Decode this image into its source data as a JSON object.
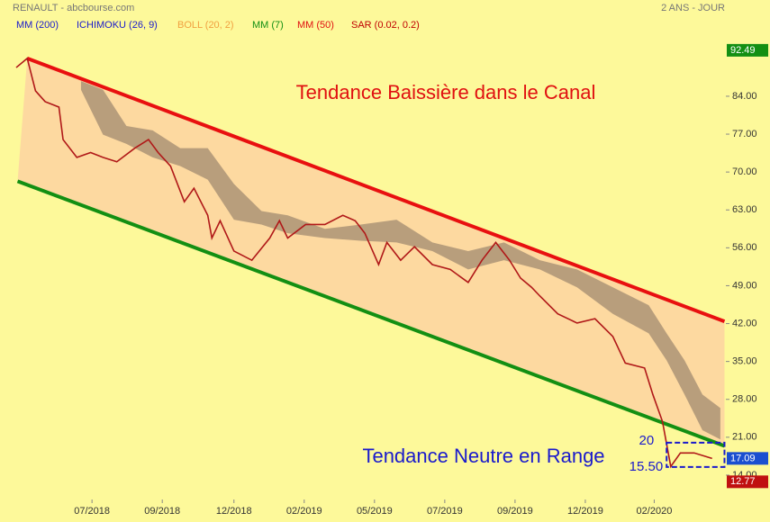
{
  "chart_data": {
    "type": "line",
    "title": "RENAULT - abcbourse.com",
    "period": "2 ANS - JOUR",
    "indicators": [
      {
        "label": "MM (200)",
        "color": "#1a1acc"
      },
      {
        "label": "ICHIMOKU (26, 9)",
        "color": "#1a1acc"
      },
      {
        "label": "BOLL (20, 2)",
        "color": "#f0a040"
      },
      {
        "label": "MM (7)",
        "color": "#138f13"
      },
      {
        "label": "MM (50)",
        "color": "#e01010"
      },
      {
        "label": "SAR (0.02, 0.2)",
        "color": "#c00000"
      }
    ],
    "x": [
      0,
      8,
      14,
      21,
      31,
      34,
      44,
      54,
      63,
      73,
      86,
      96,
      103,
      112,
      122,
      129,
      139,
      142,
      148,
      158,
      171,
      184,
      191,
      197,
      210,
      224,
      237,
      246,
      253,
      263,
      269,
      279,
      289,
      302,
      315,
      328,
      338,
      348,
      358,
      366,
      374,
      380,
      393,
      407,
      420,
      433,
      442,
      456,
      462,
      469,
      475,
      482,
      492,
      505
    ],
    "series": [
      {
        "color": "#b01818",
        "values": [
          89.3,
          91,
          85,
          83,
          82,
          76,
          72.7,
          73.6,
          72.7,
          71.9,
          74.4,
          76,
          73.6,
          71.1,
          64.5,
          67,
          62,
          57.8,
          61,
          55.4,
          53.7,
          57.8,
          61,
          57.8,
          60.3,
          60.3,
          62,
          61,
          58.7,
          52.9,
          57,
          53.7,
          56.2,
          52.9,
          52,
          49.6,
          53.7,
          57,
          53.7,
          50.4,
          48.7,
          47.1,
          43.8,
          42.1,
          42.9,
          39.6,
          34.7,
          33.8,
          28.9,
          23.9,
          15.6,
          18.1,
          18.1,
          17.09
        ]
      }
    ],
    "cloud": {
      "color": "#a08a70",
      "x": [
        47,
        63,
        80,
        99,
        119,
        139,
        158,
        178,
        197,
        224,
        250,
        276,
        302,
        328,
        354,
        380,
        407,
        433,
        459,
        472,
        485,
        498,
        511
      ],
      "upper": [
        86.8,
        85.2,
        78.5,
        77.7,
        74.4,
        74.4,
        67.8,
        62.8,
        62,
        59.5,
        60.3,
        61.2,
        57,
        55.4,
        57,
        53.7,
        52,
        48.7,
        45.4,
        40.2,
        35.2,
        28.9,
        26.4
      ],
      "lower": [
        85.2,
        76.9,
        75.2,
        72.7,
        71.1,
        68.6,
        61.2,
        60.3,
        58.7,
        57.8,
        57.3,
        57,
        55.4,
        52,
        53.7,
        52,
        48.7,
        43.8,
        40.2,
        35.2,
        28.9,
        22.3,
        20.6
      ]
    },
    "channel": {
      "fill": "#fdd9a0",
      "upper": {
        "color": "#e81010",
        "x": [
          8,
          514
        ],
        "y": [
          91,
          42.4
        ]
      },
      "lower": {
        "color": "#138f13",
        "x": [
          1,
          514
        ],
        "y": [
          68.3,
          19.4
        ]
      }
    },
    "range": {
      "color": "#1a1acc",
      "x": [
        472,
        514
      ],
      "top": {
        "value": 20,
        "label": "20"
      },
      "bottom": {
        "value": 15.5,
        "label": "15.50"
      }
    },
    "price_tags": [
      {
        "value": 92.49,
        "label": "92.49",
        "color": "#138f13"
      },
      {
        "value": 17.09,
        "label": "17.09",
        "color": "#1a4fd0"
      },
      {
        "value": 12.77,
        "label": "12.77",
        "color": "#c01010"
      }
    ],
    "annotations": [
      {
        "text": "Tendance Baissière dans le Canal",
        "color": "#e01010"
      },
      {
        "text": "Tendance Neutre en Range",
        "color": "#1a1acc"
      }
    ],
    "xlim": [
      0,
      515
    ],
    "xticks": [
      {
        "value": 55,
        "label": "07/2018"
      },
      {
        "value": 106,
        "label": "09/2018"
      },
      {
        "value": 158,
        "label": "12/2018"
      },
      {
        "value": 209,
        "label": "02/2019"
      },
      {
        "value": 260,
        "label": "05/2019"
      },
      {
        "value": 311,
        "label": "07/2019"
      },
      {
        "value": 362,
        "label": "09/2019"
      },
      {
        "value": 413,
        "label": "12/2019"
      },
      {
        "value": 463,
        "label": "02/2020"
      }
    ],
    "ylim": [
      9.5,
      94.3
    ],
    "yticks": [
      {
        "value": 14,
        "label": "14.00"
      },
      {
        "value": 21,
        "label": "21.00"
      },
      {
        "value": 28,
        "label": "28.00"
      },
      {
        "value": 35,
        "label": "35.00"
      },
      {
        "value": 42,
        "label": "42.00"
      },
      {
        "value": 49,
        "label": "49.00"
      },
      {
        "value": 56,
        "label": "56.00"
      },
      {
        "value": 63,
        "label": "63.00"
      },
      {
        "value": 70,
        "label": "70.00"
      },
      {
        "value": 77,
        "label": "77.00"
      },
      {
        "value": 84,
        "label": "84.00"
      }
    ]
  }
}
